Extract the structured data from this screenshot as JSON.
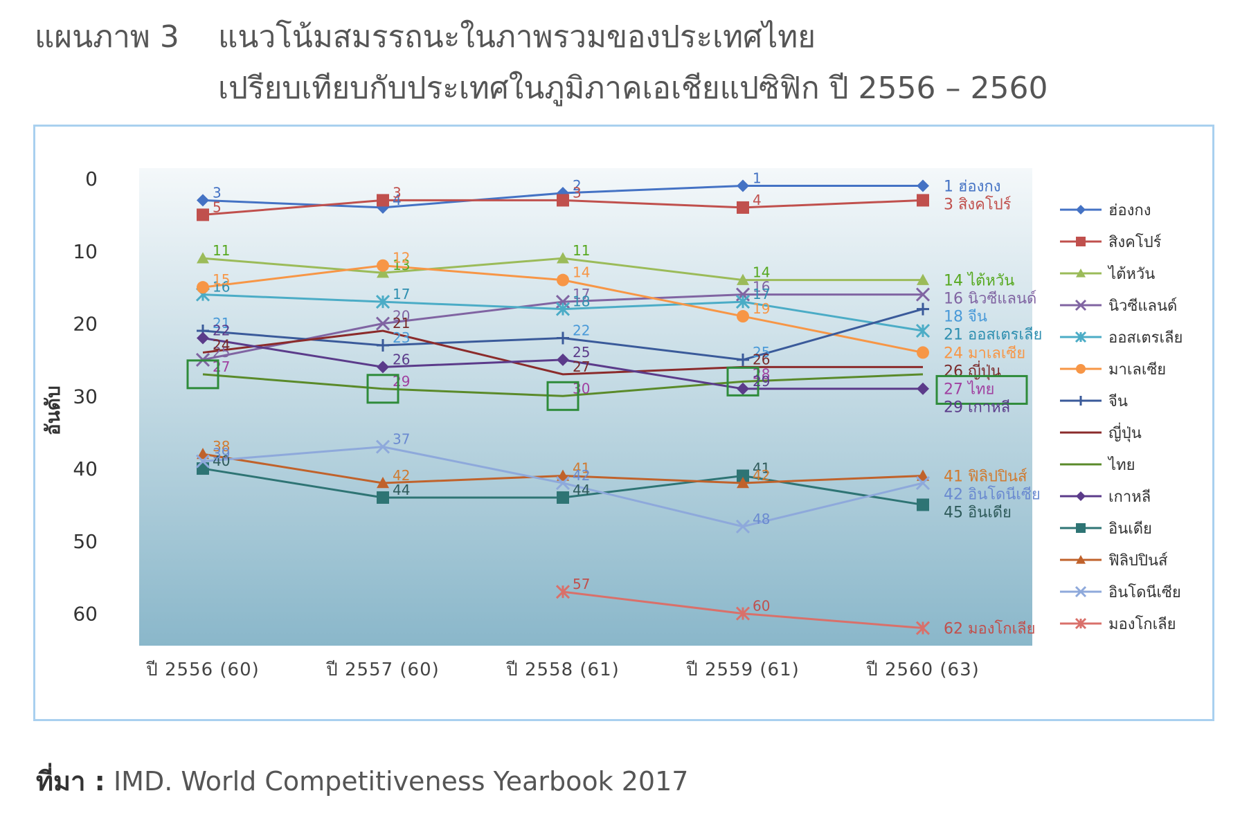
{
  "title": {
    "label": "แผนภาพ 3",
    "line1": "แนวโน้มสมรรถนะในภาพรวมของประเทศไทย",
    "line2": "เปรียบเทียบกับประเทศในภูมิภาคเอเชียแปซิฟิก ปี 2556 – 2560"
  },
  "source": {
    "label": "ที่มา :",
    "text": "IMD. World Competitiveness Yearbook 2017"
  },
  "colors": {
    "plot_bg_top": "#f4f8fa",
    "plot_bg_bottom": "#8ab7ca",
    "frame": "#a9d0ef",
    "highlight_box": "#2e8b3a"
  },
  "chart_data": {
    "type": "line",
    "ylabel": "อันดับ",
    "y_reversed": true,
    "ylim": [
      0,
      63
    ],
    "y_ticks": [
      0,
      10,
      20,
      30,
      40,
      50,
      60
    ],
    "categories": [
      "ปี 2556 (60)",
      "ปี 2557 (60)",
      "ปี 2558 (61)",
      "ปี 2559 (61)",
      "ปี 2560 (63)"
    ],
    "legend_position": "right",
    "highlight_series": "ไทย",
    "series": [
      {
        "name": "ฮ่องกง",
        "color": "#4472c4",
        "marker": "diamond",
        "values": [
          3,
          4,
          2,
          1,
          1
        ],
        "label_color": "#4472c4",
        "end_label": "1 ฮ่องกง"
      },
      {
        "name": "สิงคโปร์",
        "color": "#c0504d",
        "marker": "square",
        "values": [
          5,
          3,
          3,
          4,
          3
        ],
        "label_color": "#c0504d",
        "end_label": "3 สิงคโปร์"
      },
      {
        "name": "ไต้หวัน",
        "color": "#9bbb59",
        "marker": "triangle",
        "values": [
          11,
          13,
          11,
          14,
          14
        ],
        "label_color": "#56a81f",
        "end_label": "14 ไต้หวัน"
      },
      {
        "name": "นิวซีแลนด์",
        "color": "#8064a2",
        "marker": "x",
        "values": [
          25,
          20,
          17,
          16,
          16
        ],
        "label_color": "#8064a2",
        "end_label": "16 นิวซีแลนด์"
      },
      {
        "name": "ออสเตรเลีย",
        "color": "#4bacc6",
        "marker": "star",
        "values": [
          16,
          17,
          18,
          17,
          21
        ],
        "label_color": "#2f8fb0",
        "end_label": "21 ออสเตรเลีย"
      },
      {
        "name": "มาเลเซีย",
        "color": "#f79646",
        "marker": "circle",
        "values": [
          15,
          12,
          14,
          19,
          24
        ],
        "label_color": "#f79646",
        "end_label": "24 มาเลเซีย"
      },
      {
        "name": "จีน",
        "color": "#3a5a9a",
        "marker": "plus",
        "values": [
          21,
          23,
          22,
          25,
          18
        ],
        "label_color": "#4a9ad8",
        "end_label": "18 จีน"
      },
      {
        "name": "ญี่ปุ่น",
        "color": "#8b2b2b",
        "marker": "none",
        "values": [
          24,
          21,
          27,
          26,
          26
        ],
        "label_color": "#7a2a2a",
        "end_label": "26 ญี่ปุ่น"
      },
      {
        "name": "ไทย",
        "color": "#5a8a2a",
        "marker": "none",
        "values": [
          27,
          29,
          30,
          28,
          27
        ],
        "label_color": "#a040a0",
        "end_label": "27 ไทย"
      },
      {
        "name": "เกาหลี",
        "color": "#5b3b8a",
        "marker": "diamond",
        "values": [
          22,
          26,
          25,
          29,
          29
        ],
        "label_color": "#5b3b8a",
        "end_label": "29 เกาหลี"
      },
      {
        "name": "อินเดีย",
        "color": "#2e7474",
        "marker": "square",
        "values": [
          40,
          44,
          44,
          41,
          45
        ],
        "label_color": "#2e5a5a",
        "end_label": "45 อินเดีย"
      },
      {
        "name": "ฟิลิปปินส์",
        "color": "#c0622b",
        "marker": "triangle",
        "values": [
          38,
          42,
          41,
          42,
          41
        ],
        "label_color": "#d07a30",
        "end_label": "41 ฟิลิปปินส์"
      },
      {
        "name": "อินโดนีเซีย",
        "color": "#8ea9db",
        "marker": "x",
        "values": [
          39,
          37,
          42,
          48,
          42
        ],
        "label_color": "#6a8ad0",
        "end_label": "42 อินโดนีเซีย"
      },
      {
        "name": "มองโกเลีย",
        "color": "#d9706a",
        "marker": "star",
        "values": [
          null,
          null,
          57,
          60,
          62
        ],
        "label_color": "#c0504d",
        "end_label": "62 มองโกเลีย"
      }
    ]
  }
}
